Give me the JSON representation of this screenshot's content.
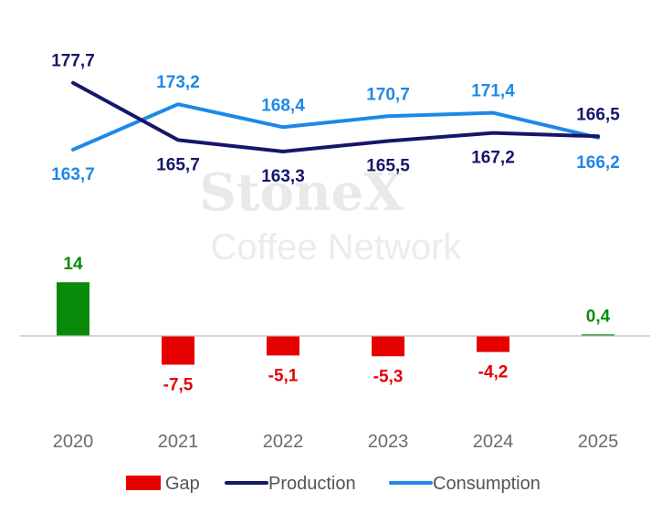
{
  "watermark": {
    "brand": "StoneX",
    "sub": "Coffee Network"
  },
  "colors": {
    "production": "#15166b",
    "consumption": "#1e88e8",
    "gap_positive": "#0a8a0a",
    "gap_negative": "#e60000",
    "axis": "#bdbdbd"
  },
  "chart_data": {
    "type": "line+bar",
    "categories": [
      "2020",
      "2021",
      "2022",
      "2023",
      "2024",
      "2025"
    ],
    "series": [
      {
        "name": "Production",
        "type": "line",
        "values": [
          177.7,
          165.7,
          163.3,
          165.5,
          167.2,
          166.5
        ],
        "labels": [
          "177,7",
          "165,7",
          "163,3",
          "165,5",
          "167,2",
          "166,5"
        ]
      },
      {
        "name": "Consumption",
        "type": "line",
        "values": [
          163.7,
          173.2,
          168.4,
          170.7,
          171.4,
          166.2
        ],
        "labels": [
          "163,7",
          "173,2",
          "168,4",
          "170,7",
          "171,4",
          "166,2"
        ]
      },
      {
        "name": "Gap",
        "type": "bar",
        "values": [
          14,
          -7.5,
          -5.1,
          -5.3,
          -4.2,
          0.4
        ],
        "labels": [
          "14",
          "-7,5",
          "-5,1",
          "-5,3",
          "-4,2",
          "0,4"
        ]
      }
    ],
    "legend": {
      "position": "bottom",
      "items": [
        "Gap",
        "Production",
        "Consumption"
      ]
    },
    "grid": false
  }
}
